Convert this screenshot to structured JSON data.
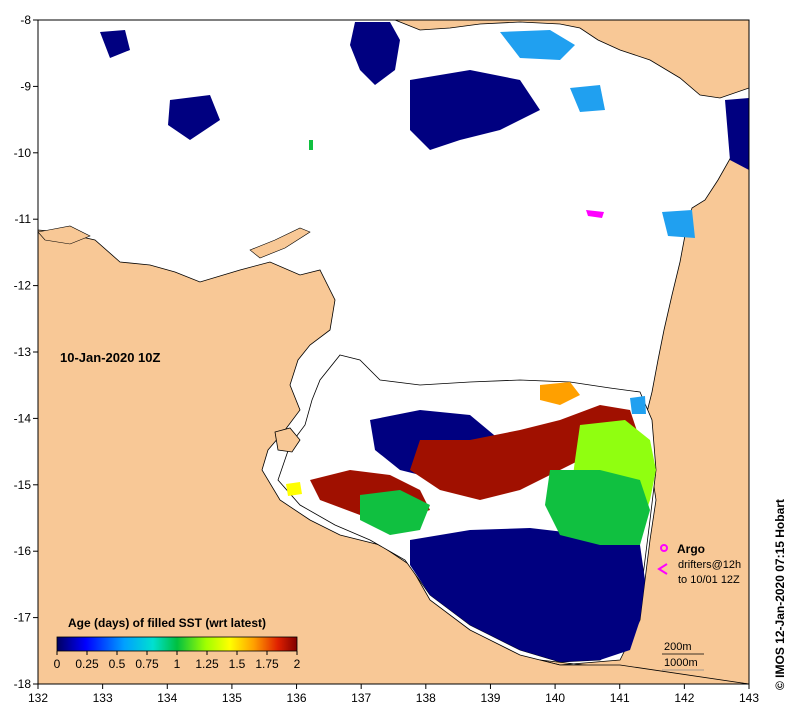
{
  "map": {
    "date_label": "10-Jan-2020 10Z",
    "x_ticks": [
      "132",
      "133",
      "134",
      "135",
      "136",
      "137",
      "138",
      "139",
      "140",
      "141",
      "142",
      "143"
    ],
    "y_ticks": [
      "-8",
      "-9",
      "-10",
      "-11",
      "-12",
      "-13",
      "-14",
      "-15",
      "-16",
      "-17",
      "-18"
    ],
    "lon_range": [
      132,
      143
    ],
    "lat_range": [
      -18,
      -8
    ],
    "colors": {
      "land": "#f8c896",
      "ocean": "#ffffff",
      "coast": "#000000"
    }
  },
  "legend": {
    "title": "Age (days) of filled SST (wrt latest)",
    "ticks": [
      "0",
      "0.25",
      "0.5",
      "0.75",
      "1",
      "1.25",
      "1.5",
      "1.75",
      "2"
    ],
    "colors": [
      "#000080",
      "#0000e0",
      "#00a0ff",
      "#00e0e0",
      "#00c060",
      "#80ff00",
      "#ffff00",
      "#ffa000",
      "#e03000",
      "#800000"
    ]
  },
  "annotations": {
    "argo": "Argo",
    "drifters_line1": "drifters@12h",
    "drifters_line2": "to 10/01 12Z",
    "scale_200": "200m",
    "scale_1000": "1000m",
    "credit": "© IMOS 12-Jan-2020 07:15 Hobart"
  }
}
